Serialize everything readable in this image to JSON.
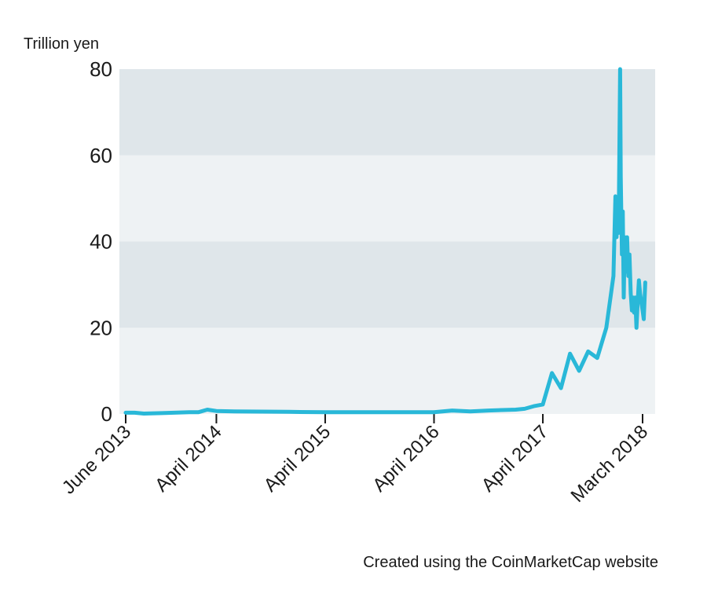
{
  "chart_data": {
    "type": "line",
    "ylabel": "Trillion yen",
    "ylim": [
      0,
      80
    ],
    "yticks": [
      0,
      20,
      40,
      60,
      80
    ],
    "xticks": [
      "June 2013",
      "April 2014",
      "April 2015",
      "April 2016",
      "April 2017",
      "March 2018"
    ],
    "grid": "alternating horizontal bands",
    "line_color": "#29b8d8",
    "band_dark": "#dfe6ea",
    "band_light": "#eef2f4",
    "source": "Created using the CoinMarketCap website",
    "series": [
      {
        "x": [
          "2013-06",
          "2013-07",
          "2013-08",
          "2013-10",
          "2014-01",
          "2014-02",
          "2014-03",
          "2014-04",
          "2014-06",
          "2014-12",
          "2015-04",
          "2015-12",
          "2016-04",
          "2016-06",
          "2016-08",
          "2016-10",
          "2017-01",
          "2017-02",
          "2017-03",
          "2017-04",
          "2017-05",
          "2017-06",
          "2017-07",
          "2017-08",
          "2017-09",
          "2017-10",
          "2017-11",
          "2017-11-25",
          "2017-12-01",
          "2017-12-05",
          "2017-12-08",
          "2017-12-12",
          "2017-12-17",
          "2017-12-19",
          "2017-12-23",
          "2017-12-26",
          "2017-12-29",
          "2018-01-02",
          "2018-01-06",
          "2018-01-10",
          "2018-01-14",
          "2018-01-18",
          "2018-01-22",
          "2018-01-26",
          "2018-01-30",
          "2018-02-03",
          "2018-02-07",
          "2018-02-11",
          "2018-02-15",
          "2018-02-19",
          "2018-02-23",
          "2018-03-01",
          "2018-03-05",
          "2018-03-10"
        ],
        "values": [
          0.3,
          0.3,
          0.1,
          0.2,
          0.4,
          0.4,
          1.0,
          0.7,
          0.6,
          0.5,
          0.4,
          0.4,
          0.4,
          0.8,
          0.6,
          0.8,
          1.0,
          1.2,
          1.8,
          2.2,
          9.5,
          6.0,
          14.0,
          10.0,
          14.5,
          13.0,
          20.0,
          32.0,
          50.5,
          41.0,
          49.0,
          42.0,
          80.0,
          55.0,
          37.0,
          47.0,
          27.0,
          41.0,
          33.0,
          41.0,
          32.0,
          37.0,
          28.0,
          24.0,
          27.0,
          23.5,
          27.0,
          20.0,
          26.0,
          31.0,
          28.0,
          24.0,
          22.0,
          30.5
        ]
      }
    ]
  }
}
